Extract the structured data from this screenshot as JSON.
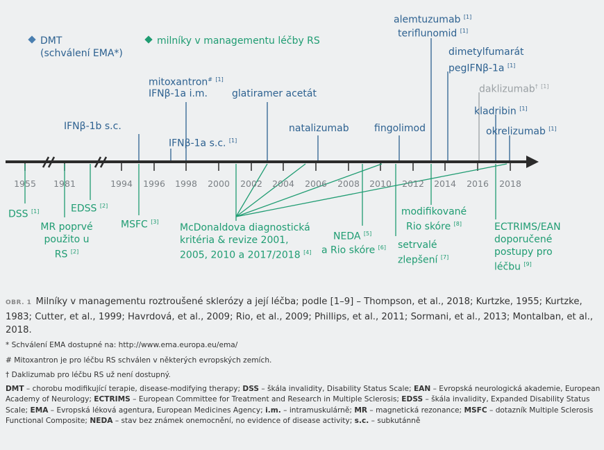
{
  "legend": {
    "dmt_line1": "DMT",
    "dmt_line2": "(schválení EMA*)",
    "milestones": "milníky v managementu léčby RS",
    "dmt_color": "#4a7fb0",
    "milestone_color": "#1f9c72"
  },
  "years": [
    "1955",
    "1981",
    "1994",
    "1996",
    "1998",
    "2000",
    "2002",
    "2004",
    "2006",
    "2008",
    "2010",
    "2012",
    "2014",
    "2016",
    "2018"
  ],
  "dmt_labels": {
    "alemtuzumab": "alemtuzumab",
    "teriflunomid": "teriflunomid",
    "dimetylfumarat": "dimetylfumarát",
    "pegifn": "pegIFNβ-1a",
    "daklizumab": "daklizumab",
    "daklizumab_mark": "†",
    "kladribin": "kladribin",
    "okrelizumab": "okrelizumab",
    "mitoxantron": "mitoxantron",
    "mitoxantron_mark": "#",
    "ifn_im": "IFNβ-1a i.m.",
    "glatiramer": "glatiramer acetát",
    "natalizumab": "natalizumab",
    "fingolimod": "fingolimod",
    "ifn1b": "IFNβ-1b s.c.",
    "ifn_sc": "IFNβ-1a s.c."
  },
  "refs": {
    "r1": "[1]",
    "r2": "[2]",
    "r3": "[3]",
    "r4": "[4]",
    "r5": "[5]",
    "r6": "[6]",
    "r7": "[7]",
    "r8": "[8]",
    "r9": "[9]"
  },
  "milestone_labels": {
    "dss": "DSS",
    "mr": "MR poprvé použito u RS",
    "edss": "EDSS",
    "msfc": "MSFC",
    "mcdonald": "McDonaldova diagnostická kritéria & revize 2001, 2005, 2010 a 2017/2018",
    "neda": "NEDA",
    "neda2": "a Rio skóre",
    "modif": "modifikované Rio skóre",
    "setrvale": "setrvalé zlepšení",
    "ectrims": "ECTRIMS/EAN doporučené postupy pro léčbu"
  },
  "caption": {
    "label": "OBR. 1",
    "text": "Milníky v managementu roztroušené sklerózy a její léčba; podle [1–9] – Thompson, et al., 2018; Kurtzke, 1955; Kurtzke, 1983; Cutter, et al., 1999; Havrdová, et al., 2009; Rio, et al., 2009; Phillips, et al., 2011; Sormani, et al., 2013; Montalban, et al., 2018."
  },
  "notes": {
    "n1": "* Schválení EMA dostupné na: http://www.ema.europa.eu/ema/",
    "n2": "# Mitoxantron je pro léčbu RS schválen v některých evropských zemích.",
    "n3": "† Daklizumab pro léčbu RS už není dostupný."
  },
  "abbreviations": [
    {
      "term": "DMT",
      "def": " – chorobu modifikující terapie, disease-modifying therapy; "
    },
    {
      "term": "DSS",
      "def": " – škála invalidity, Disability Status Scale; "
    },
    {
      "term": "EAN",
      "def": " – Evropská neurologická akademie, European Academy of Neurology; "
    },
    {
      "term": "ECTRIMS",
      "def": " – European Committee for Treatment and Research in Multiple Sclerosis; "
    },
    {
      "term": "EDSS",
      "def": " – škála invalidity, Expanded Disability Status Scale; "
    },
    {
      "term": "EMA",
      "def": " – Evropská léková agentura, European Medicines Agency; "
    },
    {
      "term": "i.m.",
      "def": " – intramuskulárně; "
    },
    {
      "term": "MR",
      "def": " – magnetická rezonance; "
    },
    {
      "term": "MSFC",
      "def": " – dotazník Multiple Sclerosis Functional Composite; "
    },
    {
      "term": "NEDA",
      "def": " – stav bez známek onemocnění, no evidence of disease activity; "
    },
    {
      "term": "s.c.",
      "def": " – subkutánně"
    }
  ]
}
